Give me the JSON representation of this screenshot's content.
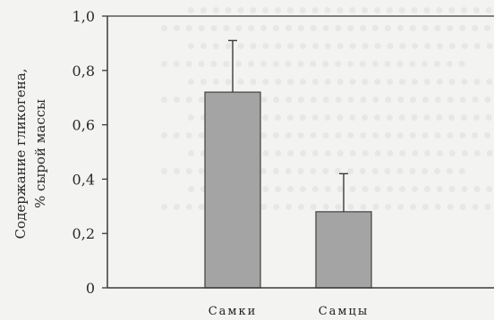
{
  "chart_data": {
    "type": "bar",
    "categories": [
      "Самки",
      "Самцы"
    ],
    "values": [
      0.72,
      0.28
    ],
    "error": [
      0.19,
      0.14
    ],
    "ylabel_lines": [
      "Содержание гликогена,",
      "% сырой массы"
    ],
    "yticks": [
      "0",
      "0,2",
      "0,4",
      "0,6",
      "0,8",
      "1,0"
    ],
    "ylim": [
      0,
      1.0
    ],
    "grid": false,
    "colors": {
      "bar": "#a4a4a4",
      "bar_edge": "#4a4a4a",
      "axis": "#3a3a3a",
      "background": "#f3f3f1",
      "bleed_text": "#d2d2d0"
    }
  }
}
